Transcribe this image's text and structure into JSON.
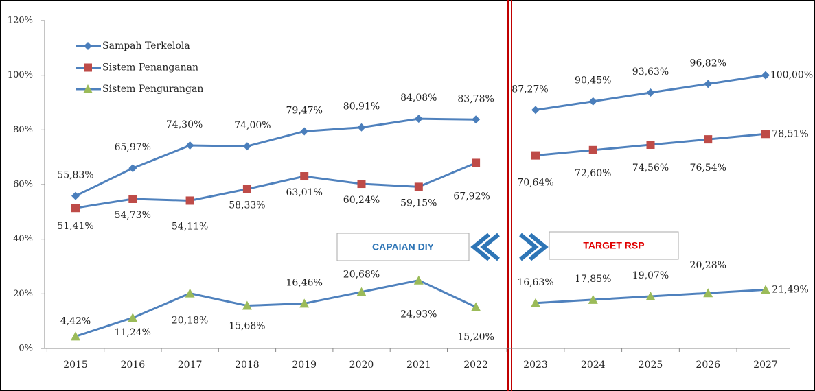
{
  "chart_data": {
    "type": "line",
    "categories": [
      "2015",
      "2016",
      "2017",
      "2018",
      "2019",
      "2020",
      "2021",
      "2022",
      "2023",
      "2024",
      "2025",
      "2026",
      "2027"
    ],
    "series": [
      {
        "name": "Sampah Terkelola",
        "color": "#4a7ebb",
        "marker": "diamond",
        "values": [
          55.83,
          65.97,
          74.3,
          74.0,
          79.47,
          80.91,
          84.08,
          83.78,
          87.27,
          90.45,
          93.63,
          96.82,
          100.0
        ],
        "value_labels": [
          "55,83%",
          "65,97%",
          "74,30%",
          "74,00%",
          "79,47%",
          "80,91%",
          "84,08%",
          "83,78%",
          "87,27%",
          "90,45%",
          "93,63%",
          "96,82%",
          "100,00%"
        ]
      },
      {
        "name": "Sistem Penanganan",
        "color": "#be4b48",
        "marker": "square",
        "values": [
          51.41,
          54.73,
          54.11,
          58.33,
          63.01,
          60.24,
          59.15,
          67.92,
          70.64,
          72.6,
          74.56,
          76.54,
          78.51
        ],
        "value_labels": [
          "51,41%",
          "54,73%",
          "54,11%",
          "58,33%",
          "63,01%",
          "60,24%",
          "59,15%",
          "67,92%",
          "70,64%",
          "72,60%",
          "74,56%",
          "76,54%",
          "78,51%"
        ]
      },
      {
        "name": "Sistem Pengurangan",
        "color": "#9bbb59",
        "marker": "triangle",
        "values": [
          4.42,
          11.24,
          20.18,
          15.68,
          16.46,
          20.68,
          24.93,
          15.2,
          16.63,
          17.85,
          19.07,
          20.28,
          21.49
        ],
        "value_labels": [
          "4,42%",
          "11,24%",
          "20,18%",
          "15,68%",
          "16,46%",
          "20,68%",
          "24,93%",
          "15,20%",
          "16,63%",
          "17,85%",
          "19,07%",
          "20,28%",
          "21,49%"
        ]
      }
    ],
    "line_color": "#4f81bd",
    "ylim": [
      0,
      120
    ],
    "yticks": [
      {
        "value": 0,
        "label": "0%"
      },
      {
        "value": 20,
        "label": "20%"
      },
      {
        "value": 40,
        "label": "40%"
      },
      {
        "value": 60,
        "label": "60%"
      },
      {
        "value": 80,
        "label": "80%"
      },
      {
        "value": 100,
        "label": "100%"
      },
      {
        "value": 120,
        "label": "120%"
      }
    ],
    "legend": "top-left",
    "annotations": [
      "CAPAIAN DIY",
      "TARGET RSP"
    ]
  }
}
